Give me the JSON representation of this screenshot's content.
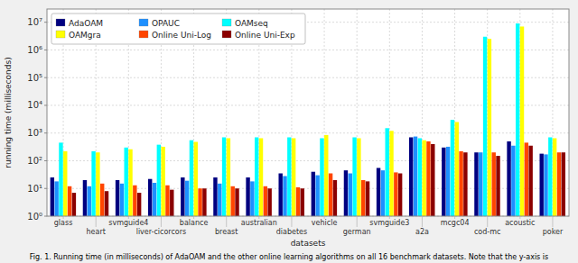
{
  "chart_data": {
    "type": "bar",
    "categories": [
      "glass",
      "heart",
      "svmguide4",
      "liver-cicorcors",
      "balance",
      "breast",
      "australian",
      "diabetes",
      "vehicle",
      "german",
      "svmguide3",
      "a2a",
      "mcgc04",
      "cod-mc",
      "acoustic",
      "poker"
    ],
    "series": [
      {
        "name": "AdaOAM",
        "color": "#000080",
        "values": [
          25,
          20,
          20,
          22,
          25,
          25,
          25,
          35,
          40,
          45,
          55,
          700,
          300,
          200,
          500,
          180
        ]
      },
      {
        "name": "OPAUC",
        "color": "#1E90FF",
        "values": [
          18,
          12,
          15,
          16,
          19,
          15,
          18,
          28,
          30,
          35,
          45,
          750,
          320,
          200,
          350,
          170
        ]
      },
      {
        "name": "OAMseq",
        "color": "#00FFFF",
        "values": [
          450,
          220,
          300,
          380,
          550,
          700,
          700,
          700,
          650,
          700,
          1500,
          650,
          3000,
          3000000,
          9000000,
          700
        ]
      },
      {
        "name": "OAMgra",
        "color": "#FFFF00",
        "values": [
          220,
          200,
          260,
          320,
          480,
          650,
          650,
          650,
          850,
          650,
          1200,
          550,
          2500,
          2500000,
          7000000,
          650
        ]
      },
      {
        "name": "Online Uni-Log",
        "color": "#FF4500",
        "values": [
          12,
          15,
          13,
          13,
          10,
          12,
          12,
          11,
          35,
          20,
          38,
          500,
          220,
          200,
          450,
          200
        ]
      },
      {
        "name": "Online Uni-Exp",
        "color": "#8B0000",
        "values": [
          7,
          8,
          7,
          9,
          10,
          10,
          10,
          10,
          20,
          18,
          35,
          400,
          200,
          150,
          350,
          200
        ]
      }
    ],
    "x_label": "datasets",
    "y_label": "running time (milliseconds)",
    "annotations": [
      "Fig. 1. Running time (in milliseconds) of AdaOAM and the other online learning algorithms on all 16 benchmark datasets. Note that the y-axis is"
    ],
    "log": "y",
    "ylim": [
      1,
      30000000
    ],
    "yticks": [
      {
        "value": 1,
        "label": "10⁰"
      },
      {
        "value": 10,
        "label": "10¹"
      },
      {
        "value": 100,
        "label": "10²"
      },
      {
        "value": 1000,
        "label": "10³"
      },
      {
        "value": 10000,
        "label": "10⁴"
      },
      {
        "value": 100000,
        "label": "10⁵"
      },
      {
        "value": 1000000,
        "label": "10⁶"
      },
      {
        "value": 10000000,
        "label": "10⁷"
      }
    ],
    "grid": true,
    "legend": "upper left"
  }
}
